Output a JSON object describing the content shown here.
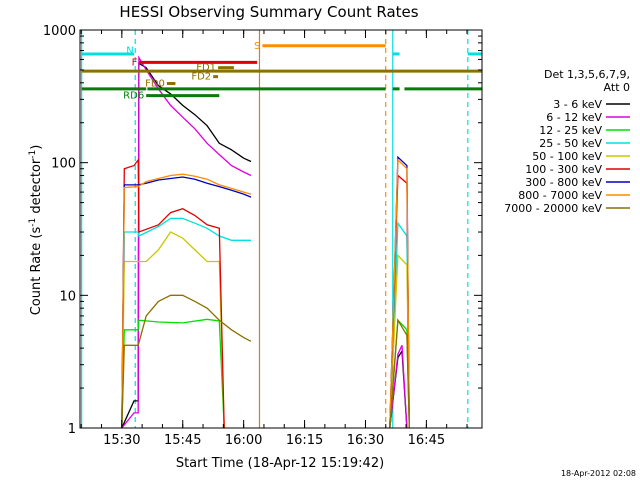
{
  "chart_data": {
    "type": "line",
    "title": "HESSI Observing Summary Count Rates",
    "xlabel": "Start Time (18-Apr-12 15:19:42)",
    "ylabel_main": "Count Rate (s",
    "ylabel_sup1": "-1",
    "ylabel_mid": " detector",
    "ylabel_sup2": "-1",
    "ylabel_end": ")",
    "yscale": "log",
    "xlim": [
      15.3283,
      16.9783
    ],
    "ylim": [
      1,
      1000
    ],
    "x_ticks": [
      {
        "value": 15.5,
        "label": "15:30"
      },
      {
        "value": 15.75,
        "label": "15:45"
      },
      {
        "value": 16.0,
        "label": "16:00"
      },
      {
        "value": 16.25,
        "label": "16:15"
      },
      {
        "value": 16.5,
        "label": "16:30"
      },
      {
        "value": 16.75,
        "label": "16:45"
      }
    ],
    "y_ticks": [
      {
        "value": 1,
        "label": "1"
      },
      {
        "value": 10,
        "label": "10"
      },
      {
        "value": 100,
        "label": "100"
      },
      {
        "value": 1000,
        "label": "1000"
      }
    ],
    "legend_header": [
      "Det 1,3,5,6,7,9,",
      "Att 0"
    ],
    "legend_placement": "right",
    "series": [
      {
        "name": "3 - 6 keV",
        "color": "#000000",
        "points": [
          [
            15.5,
            0.1
          ],
          [
            15.55,
            1.6
          ],
          [
            15.567,
            1.6
          ],
          [
            15.57,
            560
          ],
          [
            15.6,
            520
          ],
          [
            15.65,
            380
          ],
          [
            15.7,
            330
          ],
          [
            15.75,
            270
          ],
          [
            15.8,
            230
          ],
          [
            15.85,
            190
          ],
          [
            15.9,
            140
          ],
          [
            15.95,
            125
          ],
          [
            16.0,
            108
          ],
          [
            16.03,
            102
          ],
          [
            null,
            null
          ],
          [
            16.6,
            0.1
          ],
          [
            16.633,
            3.4
          ],
          [
            16.65,
            3.8
          ],
          [
            16.67,
            0.1
          ]
        ]
      },
      {
        "name": "6 - 12 keV",
        "color": "#e000e0",
        "points": [
          [
            15.5,
            0.1
          ],
          [
            15.55,
            1.3
          ],
          [
            15.567,
            1.3
          ],
          [
            15.57,
            620
          ],
          [
            15.6,
            500
          ],
          [
            15.65,
            360
          ],
          [
            15.7,
            270
          ],
          [
            15.75,
            220
          ],
          [
            15.8,
            180
          ],
          [
            15.85,
            140
          ],
          [
            15.9,
            115
          ],
          [
            15.95,
            95
          ],
          [
            16.0,
            85
          ],
          [
            16.03,
            80
          ],
          [
            null,
            null
          ],
          [
            16.6,
            0.1
          ],
          [
            16.633,
            3.6
          ],
          [
            16.65,
            4.2
          ],
          [
            16.67,
            0.1
          ]
        ]
      },
      {
        "name": "12 - 25 keV",
        "color": "#00e000",
        "points": [
          [
            15.5,
            0.1
          ],
          [
            15.51,
            5.5
          ],
          [
            15.567,
            5.5
          ],
          [
            15.57,
            6.5
          ],
          [
            15.65,
            6.3
          ],
          [
            15.75,
            6.2
          ],
          [
            15.85,
            6.6
          ],
          [
            15.9,
            6.4
          ],
          [
            15.92,
            0.1
          ],
          [
            null,
            null
          ],
          [
            16.6,
            0.1
          ],
          [
            16.633,
            6.5
          ],
          [
            16.67,
            5.5
          ],
          [
            16.68,
            0.1
          ]
        ]
      },
      {
        "name": "25 - 50 keV",
        "color": "#00e0e0",
        "points": [
          [
            15.5,
            0.1
          ],
          [
            15.51,
            30
          ],
          [
            15.567,
            30
          ],
          [
            15.57,
            28
          ],
          [
            15.65,
            33
          ],
          [
            15.7,
            38
          ],
          [
            15.75,
            38
          ],
          [
            15.8,
            35
          ],
          [
            15.85,
            32
          ],
          [
            15.9,
            28
          ],
          [
            15.95,
            26
          ],
          [
            16.0,
            26
          ],
          [
            16.03,
            26
          ],
          [
            null,
            null
          ],
          [
            16.6,
            0.1
          ],
          [
            16.633,
            35
          ],
          [
            16.67,
            28
          ],
          [
            16.68,
            0.1
          ]
        ]
      },
      {
        "name": "50 - 100 keV",
        "color": "#c8c800",
        "points": [
          [
            15.5,
            0.1
          ],
          [
            15.51,
            18
          ],
          [
            15.567,
            18
          ],
          [
            15.6,
            18
          ],
          [
            15.65,
            22
          ],
          [
            15.7,
            30
          ],
          [
            15.75,
            27
          ],
          [
            15.8,
            22
          ],
          [
            15.85,
            18
          ],
          [
            15.9,
            18
          ],
          [
            15.92,
            0.1
          ],
          [
            null,
            null
          ],
          [
            16.6,
            0.1
          ],
          [
            16.633,
            20
          ],
          [
            16.67,
            17
          ],
          [
            16.68,
            0.1
          ]
        ]
      },
      {
        "name": "100 - 300 keV",
        "color": "#e00000",
        "points": [
          [
            15.5,
            0.1
          ],
          [
            15.51,
            90
          ],
          [
            15.55,
            95
          ],
          [
            15.567,
            105
          ],
          [
            15.57,
            30
          ],
          [
            15.65,
            34
          ],
          [
            15.7,
            42
          ],
          [
            15.75,
            45
          ],
          [
            15.8,
            40
          ],
          [
            15.85,
            34
          ],
          [
            15.9,
            32
          ],
          [
            15.92,
            0.1
          ],
          [
            null,
            null
          ],
          [
            16.6,
            0.1
          ],
          [
            16.633,
            80
          ],
          [
            16.67,
            70
          ],
          [
            16.68,
            0.1
          ]
        ]
      },
      {
        "name": "300 - 800 keV",
        "color": "#0000c0",
        "points": [
          [
            15.5,
            0.1
          ],
          [
            15.51,
            68
          ],
          [
            15.567,
            68
          ],
          [
            15.6,
            70
          ],
          [
            15.65,
            74
          ],
          [
            15.7,
            76
          ],
          [
            15.75,
            78
          ],
          [
            15.8,
            75
          ],
          [
            15.85,
            70
          ],
          [
            15.9,
            66
          ],
          [
            15.95,
            62
          ],
          [
            16.0,
            58
          ],
          [
            16.03,
            55
          ],
          [
            null,
            null
          ],
          [
            16.6,
            0.1
          ],
          [
            16.633,
            110
          ],
          [
            16.67,
            95
          ],
          [
            16.68,
            0.1
          ]
        ]
      },
      {
        "name": "800 - 7000 keV",
        "color": "#ff8c00",
        "points": [
          [
            15.5,
            0.1
          ],
          [
            15.51,
            65
          ],
          [
            15.567,
            66
          ],
          [
            15.6,
            72
          ],
          [
            15.65,
            76
          ],
          [
            15.7,
            80
          ],
          [
            15.75,
            82
          ],
          [
            15.8,
            79
          ],
          [
            15.85,
            75
          ],
          [
            15.9,
            68
          ],
          [
            15.95,
            64
          ],
          [
            16.0,
            60
          ],
          [
            16.03,
            58
          ],
          [
            null,
            null
          ],
          [
            16.6,
            0.1
          ],
          [
            16.633,
            105
          ],
          [
            16.67,
            90
          ],
          [
            16.68,
            0.1
          ]
        ]
      },
      {
        "name": "7000 - 20000 keV",
        "color": "#8c7000",
        "points": [
          [
            15.5,
            0.1
          ],
          [
            15.51,
            4.2
          ],
          [
            15.567,
            4.2
          ],
          [
            15.6,
            7
          ],
          [
            15.65,
            9
          ],
          [
            15.7,
            10
          ],
          [
            15.75,
            10
          ],
          [
            15.8,
            9
          ],
          [
            15.85,
            8
          ],
          [
            15.9,
            6.5
          ],
          [
            15.95,
            5.5
          ],
          [
            16.0,
            4.8
          ],
          [
            16.03,
            4.5
          ],
          [
            null,
            null
          ],
          [
            16.6,
            0.1
          ],
          [
            16.633,
            6.5
          ],
          [
            16.67,
            5
          ],
          [
            16.68,
            0.1
          ]
        ]
      }
    ],
    "vertical_lines": [
      {
        "x": 15.335,
        "color": "#00e0e0",
        "style": "solid"
      },
      {
        "x": 15.555,
        "color": "#00e0e0",
        "style": "dashed"
      },
      {
        "x": 16.065,
        "color": "#d08020",
        "style": "solid"
      },
      {
        "x": 16.583,
        "color": "#ff8c00",
        "style": "dashed"
      },
      {
        "x": 16.612,
        "color": "#00e0e0",
        "style": "solid"
      },
      {
        "x": 16.92,
        "color": "#00e0e0",
        "style": "dashed"
      }
    ],
    "flag_bars": [
      {
        "label": "S",
        "color": "#ff8c00",
        "x1": 16.077,
        "x2": 16.583,
        "y": 760
      },
      {
        "label": "",
        "color": "#00e0e0",
        "x1": 15.335,
        "x2": 15.55,
        "y": 660
      },
      {
        "label": "",
        "color": "#00e0e0",
        "x1": 16.612,
        "x2": 16.64,
        "y": 660
      },
      {
        "label": "",
        "color": "#00e0e0",
        "x1": 16.92,
        "x2": 16.978,
        "y": 660
      },
      {
        "label": "N",
        "color": "#00e0e0",
        "x1": 15.557,
        "x2": 15.557,
        "y": 700
      },
      {
        "label": "F",
        "color": "#e00000",
        "x1": 15.572,
        "x2": 16.055,
        "y": 570
      },
      {
        "label": "FD1",
        "color": "#8c7000",
        "x1": 15.895,
        "x2": 15.96,
        "y": 520
      },
      {
        "label": "",
        "color": "#8c7000",
        "x1": 15.335,
        "x2": 16.978,
        "y": 490
      },
      {
        "label": "FD2",
        "color": "#8c7000",
        "x1": 15.875,
        "x2": 15.895,
        "y": 445
      },
      {
        "label": "FD0",
        "color": "#8c7000",
        "x1": 15.685,
        "x2": 15.72,
        "y": 395
      },
      {
        "label": "",
        "color": "#0a7a0a",
        "x1": 15.335,
        "x2": 15.6,
        "y": 360
      },
      {
        "label": "",
        "color": "#0a7a0a",
        "x1": 15.605,
        "x2": 16.583,
        "y": 360
      },
      {
        "label": "",
        "color": "#0a7a0a",
        "x1": 16.612,
        "x2": 16.64,
        "y": 360
      },
      {
        "label": "",
        "color": "#0a7a0a",
        "x1": 16.66,
        "x2": 16.978,
        "y": 360
      },
      {
        "label": "RD6",
        "color": "#0a7a0a",
        "x1": 15.6,
        "x2": 15.9,
        "y": 320
      }
    ],
    "timestamp": "18-Apr-2012 02:08"
  }
}
